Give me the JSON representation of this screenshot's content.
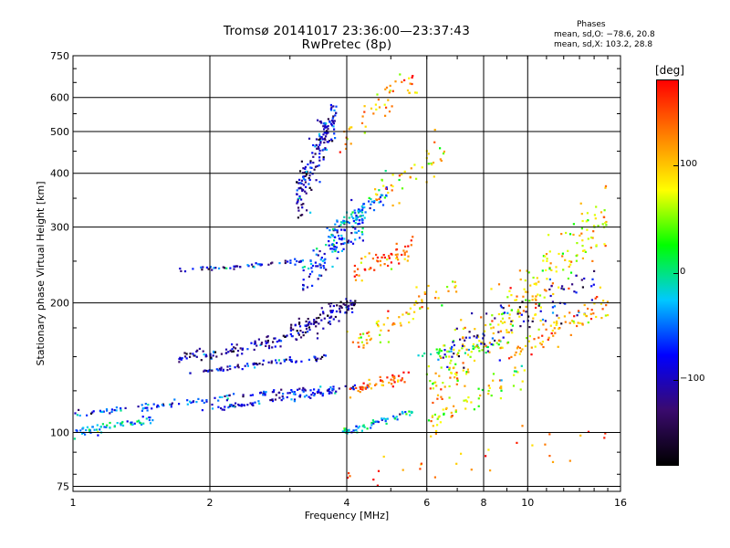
{
  "chart_data": {
    "type": "scatter",
    "title": "Tromsø 20141017 23:36:00—23:37:43",
    "subtitle": "RwPretec (8p)",
    "xlabel": "Frequency [MHz]",
    "ylabel": "Stationary phase Virtual Height [km]",
    "x_scale": "log",
    "y_scale": "log",
    "xlim": [
      1,
      16
    ],
    "ylim": [
      73,
      750
    ],
    "x_ticks": [
      1,
      2,
      4,
      6,
      8,
      10,
      16
    ],
    "x_tick_labels": [
      "1",
      "2",
      "4",
      "6",
      "8",
      "10",
      "16"
    ],
    "y_ticks": [
      75,
      100,
      200,
      300,
      400,
      500,
      600,
      750
    ],
    "y_tick_labels": [
      "75",
      "100",
      "200",
      "300",
      "400",
      "500",
      "600",
      "750"
    ],
    "grid": true,
    "phase_box": {
      "heading": "Phases",
      "o_line": "mean, sd,O: −78.6, 20.8",
      "x_line": "mean, sd,X: 103.2, 28.8"
    },
    "colorbar": {
      "unit": "[deg]",
      "range": [
        -180,
        180
      ],
      "ticks": [
        100,
        0,
        -100
      ],
      "tick_labels": [
        "100",
        "0",
        "−100"
      ],
      "colors": [
        "#000000",
        "#3a0a6e",
        "#0000ff",
        "#00c8ff",
        "#00ff00",
        "#ffff00",
        "#ff8000",
        "#ff0000"
      ]
    },
    "clusters": [
      {
        "f0": 1.0,
        "f1": 1.5,
        "h0": 100,
        "h1": 108,
        "phase": -30,
        "spread": 0.025,
        "n": 60
      },
      {
        "f0": 1.0,
        "f1": 2.2,
        "h0": 110,
        "h1": 120,
        "phase": -60,
        "spread": 0.02,
        "n": 70
      },
      {
        "f0": 1.7,
        "f1": 3.2,
        "h0": 238,
        "h1": 250,
        "phase": -95,
        "spread": 0.012,
        "n": 55
      },
      {
        "f0": 1.7,
        "f1": 3.0,
        "h0": 148,
        "h1": 165,
        "phase": -110,
        "spread": 0.03,
        "n": 90
      },
      {
        "f0": 1.8,
        "f1": 3.6,
        "h0": 138,
        "h1": 150,
        "phase": -100,
        "spread": 0.015,
        "n": 70
      },
      {
        "f0": 1.9,
        "f1": 3.8,
        "h0": 112,
        "h1": 125,
        "phase": -80,
        "spread": 0.015,
        "n": 70
      },
      {
        "f0": 2.2,
        "f1": 4.5,
        "h0": 122,
        "h1": 128,
        "phase": -90,
        "spread": 0.015,
        "n": 60
      },
      {
        "f0": 3.1,
        "f1": 3.8,
        "h0": 350,
        "h1": 550,
        "phase": -100,
        "spread": 0.12,
        "n": 170
      },
      {
        "f0": 3.2,
        "f1": 4.4,
        "h0": 230,
        "h1": 320,
        "phase": -60,
        "spread": 0.1,
        "n": 130
      },
      {
        "f0": 3.0,
        "f1": 4.2,
        "h0": 170,
        "h1": 200,
        "phase": -110,
        "spread": 0.06,
        "n": 110
      },
      {
        "f0": 3.6,
        "f1": 4.9,
        "h0": 290,
        "h1": 360,
        "phase": -40,
        "spread": 0.05,
        "n": 70
      },
      {
        "f0": 3.9,
        "f1": 5.6,
        "h0": 100,
        "h1": 112,
        "phase": -30,
        "spread": 0.02,
        "n": 60
      },
      {
        "f0": 4.0,
        "f1": 5.5,
        "h0": 125,
        "h1": 135,
        "phase": 150,
        "spread": 0.03,
        "n": 50
      },
      {
        "f0": 4.1,
        "f1": 5.6,
        "h0": 230,
        "h1": 270,
        "phase": 140,
        "spread": 0.06,
        "n": 60
      },
      {
        "f0": 3.8,
        "f1": 5.8,
        "h0": 470,
        "h1": 680,
        "phase": 120,
        "spread": 0.1,
        "n": 50
      },
      {
        "f0": 4.6,
        "f1": 6.6,
        "h0": 350,
        "h1": 460,
        "phase": 100,
        "spread": 0.1,
        "n": 45
      },
      {
        "f0": 4.0,
        "f1": 7.0,
        "h0": 160,
        "h1": 220,
        "phase": 100,
        "spread": 0.08,
        "n": 70
      },
      {
        "f0": 5.6,
        "f1": 9.0,
        "h0": 150,
        "h1": 160,
        "phase": 20,
        "spread": 0.03,
        "n": 40
      },
      {
        "f0": 6.0,
        "f1": 10.0,
        "h0": 105,
        "h1": 140,
        "phase": 70,
        "spread": 0.07,
        "n": 60
      },
      {
        "f0": 6.0,
        "f1": 15.0,
        "h0": 120,
        "h1": 320,
        "phase": 90,
        "spread": 0.18,
        "n": 260
      },
      {
        "f0": 6.5,
        "f1": 14.0,
        "h0": 150,
        "h1": 220,
        "phase": -100,
        "spread": 0.12,
        "n": 90
      },
      {
        "f0": 9.0,
        "f1": 15.0,
        "h0": 150,
        "h1": 200,
        "phase": 120,
        "spread": 0.08,
        "n": 80
      },
      {
        "f0": 4.0,
        "f1": 15.0,
        "h0": 78,
        "h1": 100,
        "phase": 140,
        "spread": 0.1,
        "n": 30
      }
    ]
  }
}
